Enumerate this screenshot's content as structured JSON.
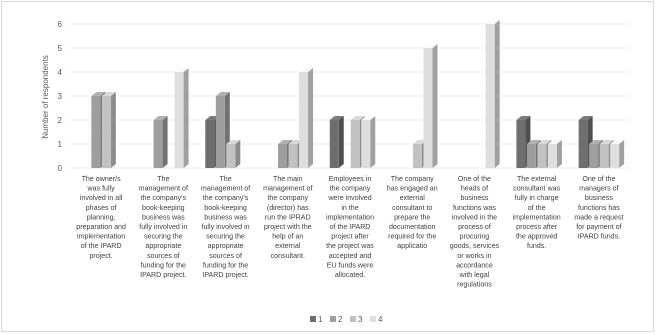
{
  "chart_data": {
    "type": "bar",
    "title": "",
    "xlabel": "",
    "ylabel": "Number of respondents",
    "ylim": [
      0,
      6
    ],
    "yticks": [
      0,
      1,
      2,
      3,
      4,
      5,
      6
    ],
    "grid": true,
    "legend_position": "bottom",
    "categories": [
      "The owner/s was fully involved in all phases of planning, preparation and implementation of the IPARD project.",
      "The management of the company's book-keeping business was fully involved in securing the appropriate sources of funding for the IPARD project.",
      "The management of the company's book-keeping business was fully involved in securing the appropriate sources of funding for the IPARD project.",
      "The main management of the company (director) has run the IPRAD project with the help of an external consultant.",
      "Employees in the company were involved in the implementation of the IPARD project after the project was accepted and EU funds were allocated.",
      "The company has engaged an external consultant to prepare the documentation required for the applicatio",
      "One of the heads of business functions was involved in the process of procuring goods, services or works in accordance with legal regulations",
      "The external consultant was fully in charge of the implementation process after the approved funds.",
      "One of the managers of business functions has made a request for payment of IPARD funds."
    ],
    "category_lines": [
      [
        "The owner/s",
        "was fully",
        "involved in all",
        "phases of",
        "planning,",
        "preparation and",
        "implementation",
        "of the IPARD",
        "project."
      ],
      [
        "The",
        "management of",
        "the company's",
        "book-keeping",
        "business was",
        "fully involved in",
        "securing the",
        "appropriate",
        "sources of",
        "funding for the",
        "IPARD project."
      ],
      [
        "The",
        "management of",
        "the company's",
        "book-keeping",
        "business was",
        "fully involved in",
        "securing the",
        "appropriate",
        "sources of",
        "funding for the",
        "IPARD project."
      ],
      [
        "The main",
        "management of",
        "the company",
        "(director) has",
        "run the IPRAD",
        "project with the",
        "help of an",
        "external",
        "consultant."
      ],
      [
        "Employees in",
        "the company",
        "were involved",
        "in the",
        "implementation",
        "of the IPARD",
        "project after",
        "the project was",
        "accepted and",
        "EU funds were",
        "allocated."
      ],
      [
        "The company",
        "has engaged an",
        "external",
        "consultant to",
        "prepare the",
        "documentation",
        "required for the",
        "applicatio"
      ],
      [
        "One of the",
        "heads of",
        "business",
        "functions was",
        "involved in the",
        "process of",
        "procuring",
        "goods, services",
        "or works in",
        "accordance",
        "with legal",
        "regulations"
      ],
      [
        "The external",
        "consultant was",
        "fully in charge",
        "of the",
        "implementation",
        "process after",
        "the approved",
        "funds."
      ],
      [
        "One of the",
        "managers of",
        "business",
        "functions has",
        "made a request",
        "for payment of",
        "IPARD funds."
      ]
    ],
    "series": [
      {
        "name": "1",
        "color": "#6e6e6e",
        "values": [
          0,
          0,
          2,
          0,
          2,
          0,
          0,
          2,
          2
        ]
      },
      {
        "name": "2",
        "color": "#9e9e9e",
        "values": [
          3,
          2,
          3,
          1,
          0,
          0,
          0,
          1,
          1
        ]
      },
      {
        "name": "3",
        "color": "#c2c2c2",
        "values": [
          3,
          0,
          1,
          1,
          2,
          1,
          0,
          1,
          1
        ]
      },
      {
        "name": "4",
        "color": "#dedede",
        "values": [
          0,
          4,
          0,
          4,
          2,
          5,
          6,
          1,
          1
        ]
      }
    ]
  }
}
